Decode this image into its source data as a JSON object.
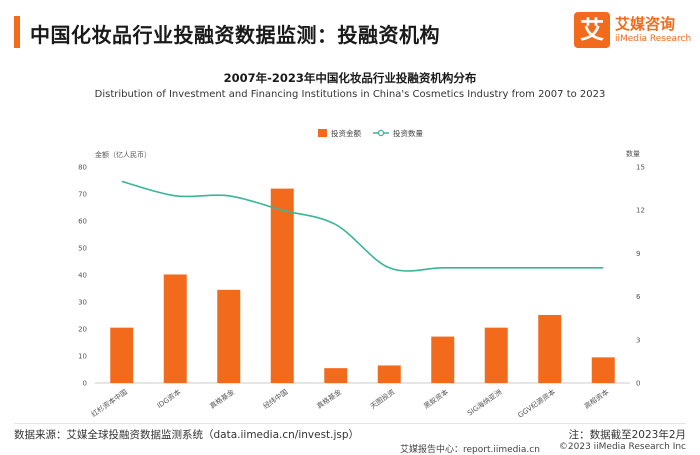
{
  "header": {
    "title": "中国化妆品行业投融资数据监测：投融资机构",
    "brand_cn": "艾媒咨询",
    "brand_en": "iiMedia Research",
    "brand_mark": "艾",
    "accent_color": "#f26b1d"
  },
  "chart_data": {
    "type": "bar",
    "title": "2007年-2023年中国化妆品行业投融资机构分布",
    "subtitle": "Distribution of Investment and Financing Institutions in China's Cosmetics Industry from 2007 to 2023",
    "categories": [
      "红杉资本中国",
      "IDG资本",
      "真格基金",
      "经纬中国",
      "真格基金",
      "天图投资",
      "黑蚁资本",
      "SIG海纳亚洲",
      "GGV纪源资本",
      "高榕资本"
    ],
    "series": [
      {
        "name": "投资金额",
        "type": "bar",
        "axis": "left",
        "color": "#f26b1d",
        "values": [
          20.5,
          40.2,
          34.5,
          72.0,
          5.5,
          6.5,
          17.2,
          20.5,
          25.2,
          9.5
        ]
      },
      {
        "name": "投资数量",
        "type": "line",
        "axis": "right",
        "color": "#3bb497",
        "values": [
          14,
          13,
          13,
          12,
          11,
          8,
          8,
          8,
          8,
          8
        ]
      }
    ],
    "ylabel_left": "金额（亿人民币）",
    "ylabel_right": "数量",
    "ylim_left": [
      0,
      80
    ],
    "yticks_left": [
      0,
      10,
      20,
      30,
      40,
      50,
      60,
      70,
      80
    ],
    "ylim_right": [
      0,
      15
    ],
    "yticks_right": [
      0,
      3,
      6,
      9,
      12,
      15
    ],
    "legend_position": "top-center",
    "grid": false
  },
  "footer": {
    "source": "数据来源：艾媒全球投融资数据监测系统（data.iimedia.cn/invest.jsp）",
    "note": "注：数据截至2023年2月",
    "report_center": "艾媒报告中心：report.iimedia.cn",
    "copyright": "©2023  iiMedia Research  Inc"
  }
}
